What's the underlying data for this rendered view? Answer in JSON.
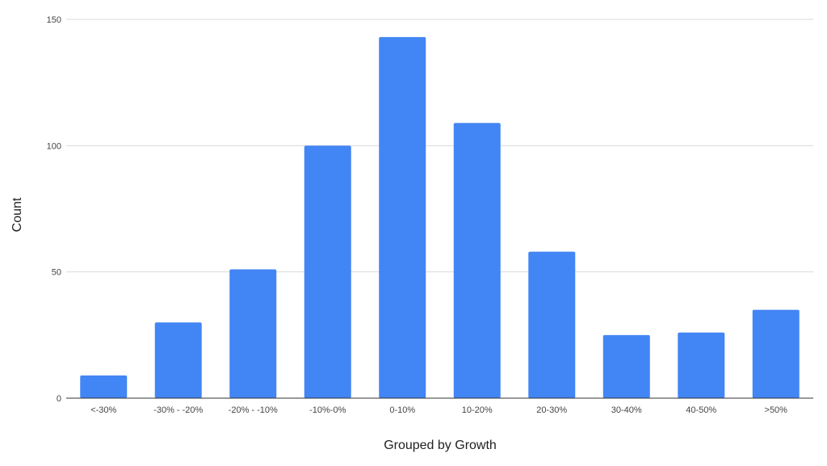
{
  "chart_data": {
    "type": "bar",
    "title": "",
    "xlabel": "Grouped by Growth",
    "ylabel": "Count",
    "categories": [
      "<-30%",
      "-30% - -20%",
      "-20% - -10%",
      "-10%-0%",
      "0-10%",
      "10-20%",
      "20-30%",
      "30-40%",
      "40-50%",
      ">50%"
    ],
    "values": [
      9,
      30,
      51,
      100,
      143,
      109,
      58,
      25,
      26,
      35
    ],
    "ylim": [
      0,
      150
    ],
    "yticks": [
      0,
      50,
      100,
      150
    ],
    "grid": true,
    "bar_color": "#4285f4"
  }
}
